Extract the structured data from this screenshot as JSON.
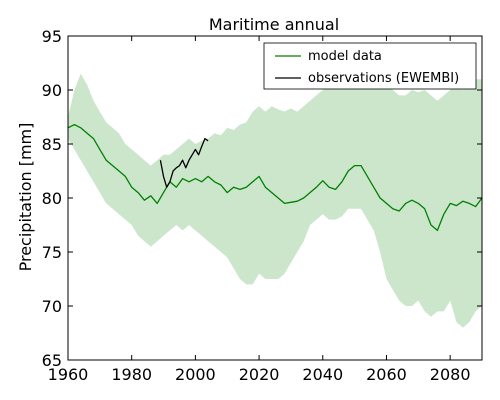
{
  "chart_data": {
    "type": "line",
    "title": "Maritime annual",
    "xlabel": "",
    "ylabel": "Precipitation [mm]",
    "xlim": [
      1960,
      2090
    ],
    "ylim": [
      65,
      95
    ],
    "xticks": [
      1960,
      1980,
      2000,
      2020,
      2040,
      2060,
      2080
    ],
    "yticks": [
      65,
      70,
      75,
      80,
      85,
      90,
      95
    ],
    "grid": false,
    "legend_position": "top-right",
    "colors": {
      "model": "#008000",
      "band": "#a9d6a9",
      "obs": "#000000"
    },
    "series": [
      {
        "name": "model data",
        "x": [
          1960,
          1962,
          1964,
          1966,
          1968,
          1970,
          1972,
          1974,
          1976,
          1978,
          1980,
          1982,
          1984,
          1986,
          1988,
          1990,
          1992,
          1994,
          1996,
          1998,
          2000,
          2002,
          2004,
          2006,
          2008,
          2010,
          2012,
          2014,
          2016,
          2018,
          2020,
          2022,
          2024,
          2026,
          2028,
          2030,
          2032,
          2034,
          2036,
          2038,
          2040,
          2042,
          2044,
          2046,
          2048,
          2050,
          2052,
          2054,
          2056,
          2058,
          2060,
          2062,
          2064,
          2066,
          2068,
          2070,
          2072,
          2074,
          2076,
          2078,
          2080,
          2082,
          2084,
          2086,
          2088,
          2090
        ],
        "values": [
          86.5,
          86.8,
          86.5,
          86.0,
          85.5,
          84.5,
          83.5,
          83.0,
          82.5,
          82.0,
          81.0,
          80.5,
          79.8,
          80.2,
          79.5,
          80.5,
          81.5,
          81.0,
          81.8,
          81.5,
          81.8,
          81.5,
          82.0,
          81.5,
          81.2,
          80.5,
          81.0,
          80.8,
          81.0,
          81.5,
          82.0,
          81.0,
          80.5,
          80.0,
          79.5,
          79.6,
          79.7,
          80.0,
          80.5,
          81.0,
          81.6,
          81.0,
          80.8,
          81.5,
          82.5,
          83.0,
          83.0,
          82.0,
          81.0,
          80.0,
          79.5,
          79.0,
          78.8,
          79.5,
          79.8,
          79.5,
          79.0,
          77.5,
          77.0,
          78.5,
          79.5,
          79.3,
          79.7,
          79.5,
          79.2,
          80.0
        ]
      },
      {
        "name": "observations (EWEMBI)",
        "x": [
          1989,
          1990,
          1991,
          1992,
          1993,
          1994,
          1995,
          1996,
          1997,
          1998,
          1999,
          2000,
          2001,
          2002,
          2003,
          2004
        ],
        "values": [
          83.5,
          82.0,
          81.0,
          81.5,
          82.5,
          82.8,
          83.0,
          83.5,
          82.8,
          83.5,
          84.0,
          84.5,
          84.0,
          84.8,
          85.5,
          85.3
        ]
      }
    ],
    "band": {
      "x": [
        1960,
        1962,
        1964,
        1966,
        1968,
        1970,
        1972,
        1974,
        1976,
        1978,
        1980,
        1982,
        1984,
        1986,
        1988,
        1990,
        1992,
        1994,
        1996,
        1998,
        2000,
        2002,
        2004,
        2006,
        2008,
        2010,
        2012,
        2014,
        2016,
        2018,
        2020,
        2022,
        2024,
        2026,
        2028,
        2030,
        2032,
        2034,
        2036,
        2038,
        2040,
        2042,
        2044,
        2046,
        2048,
        2050,
        2052,
        2054,
        2056,
        2058,
        2060,
        2062,
        2064,
        2066,
        2068,
        2070,
        2072,
        2074,
        2076,
        2078,
        2080,
        2082,
        2084,
        2086,
        2088,
        2090
      ],
      "upper": [
        87.5,
        90.0,
        91.5,
        90.5,
        89.0,
        88.0,
        87.0,
        86.5,
        86.0,
        85.0,
        84.5,
        84.0,
        83.5,
        83.0,
        83.5,
        84.0,
        84.0,
        84.5,
        85.0,
        85.5,
        85.0,
        85.3,
        85.5,
        86.0,
        85.8,
        86.5,
        86.3,
        86.8,
        87.0,
        88.0,
        88.5,
        88.0,
        88.5,
        88.2,
        88.0,
        88.3,
        88.0,
        88.5,
        89.0,
        89.5,
        90.0,
        90.5,
        90.5,
        91.0,
        91.5,
        91.5,
        91.0,
        91.0,
        90.5,
        90.8,
        90.5,
        90.0,
        89.5,
        89.5,
        90.0,
        89.8,
        90.0,
        89.5,
        89.0,
        89.5,
        90.0,
        90.5,
        90.0,
        90.5,
        91.0,
        91.0
      ],
      "lower": [
        85.5,
        84.5,
        83.5,
        82.5,
        81.5,
        80.5,
        79.5,
        79.0,
        78.5,
        78.0,
        77.5,
        76.5,
        76.0,
        75.5,
        76.0,
        76.5,
        77.0,
        77.5,
        77.0,
        77.5,
        77.0,
        76.5,
        76.0,
        75.5,
        75.0,
        74.5,
        73.5,
        72.5,
        72.0,
        72.0,
        73.0,
        72.5,
        72.5,
        72.5,
        73.0,
        74.0,
        75.0,
        76.0,
        77.5,
        78.0,
        78.5,
        78.0,
        78.0,
        78.3,
        79.0,
        79.0,
        79.0,
        78.0,
        77.0,
        75.0,
        72.5,
        71.5,
        70.5,
        70.0,
        70.0,
        70.5,
        69.5,
        69.0,
        69.5,
        69.5,
        70.5,
        68.5,
        68.0,
        68.5,
        69.5,
        70.0
      ]
    }
  }
}
